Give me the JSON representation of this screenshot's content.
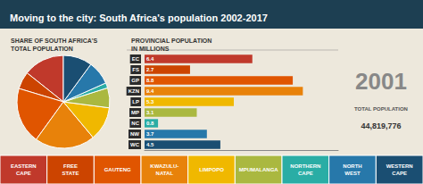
{
  "chart_data": [
    {
      "type": "pie",
      "title": "Moving to the city: South Africa's population 2002-2017",
      "subtitle": "SHARE OF SOUTH AFRICA'S\nTOTAL POPULATION",
      "categories": [
        "EASTERN\nCAPE",
        "FREE\nSTATE",
        "GAUTENG",
        "KWAZULU-\nNATAL",
        "LIMPOPO",
        "MPUMALANGA",
        "NORTHERN\nCAPE",
        "NORTH\nWEST",
        "WESTERN\nCAPE"
      ],
      "values": [
        6.4,
        2.7,
        8.8,
        9.4,
        5.3,
        3.1,
        0.8,
        3.7,
        4.5
      ],
      "colors": [
        "#c0392b",
        "#cc4400",
        "#e05500",
        "#e8820a",
        "#f0b800",
        "#aab840",
        "#2aada5",
        "#2778aa",
        "#1a4e72"
      ],
      "legend": "bottom"
    },
    {
      "type": "bar",
      "orientation": "horizontal",
      "subtitle": "PROVINCIAL POPULATION\nIN MILLIONS",
      "categories": [
        "EC",
        "FS",
        "GP",
        "KZN",
        "LP",
        "MP",
        "NC",
        "NW",
        "WC"
      ],
      "values": [
        6.4,
        2.7,
        8.8,
        9.4,
        5.3,
        3.1,
        0.8,
        3.7,
        4.5
      ],
      "colors": [
        "#c0392b",
        "#cc4400",
        "#e05500",
        "#e8820a",
        "#f0b800",
        "#aab840",
        "#2aada5",
        "#2778aa",
        "#1a4e72"
      ],
      "xlim": [
        0,
        11.5
      ],
      "data_labels": true,
      "tick_labels": "y",
      "grid": false,
      "annotations": [
        "2001",
        "TOTAL POPULATION",
        "44,819,776"
      ]
    }
  ]
}
